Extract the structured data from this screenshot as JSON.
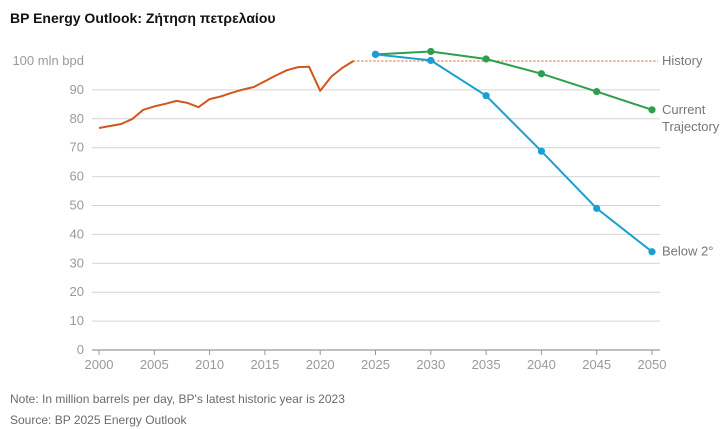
{
  "title": "BP Energy Outlook: Ζήτηση πετρελαίου",
  "note": "Note: In million barrels per day, BP's latest historic year is 2023",
  "source": "Source: BP 2025 Energy Outlook",
  "colors": {
    "history": "#d2561e",
    "current": "#2e9e4f",
    "below2": "#1a9fd3",
    "reference": "#d2561e",
    "grid": "#d4d4d4",
    "axis": "#9a9a9a"
  },
  "chart_data": {
    "type": "line",
    "title": "BP Energy Outlook: Ζήτηση πετρελαίου",
    "xlim": [
      2000,
      2050
    ],
    "ylim": [
      0,
      100
    ],
    "x_ticks": [
      2000,
      2005,
      2010,
      2015,
      2020,
      2025,
      2030,
      2035,
      2040,
      2045,
      2050
    ],
    "y_ticks": [
      0,
      10,
      20,
      30,
      40,
      50,
      60,
      70,
      80,
      90,
      100
    ],
    "y_tick_labels": [
      "0",
      "10",
      "20",
      "30",
      "40",
      "50",
      "60",
      "70",
      "80",
      "90",
      "100 mln bpd"
    ],
    "grid": "horizontal",
    "reference_line": {
      "y": 100,
      "style": "dotted",
      "label": "History"
    },
    "series": [
      {
        "name": "History",
        "markers": false,
        "x": [
          2000,
          2001,
          2002,
          2003,
          2004,
          2005,
          2006,
          2007,
          2008,
          2009,
          2010,
          2011,
          2012,
          2013,
          2014,
          2015,
          2016,
          2017,
          2018,
          2019,
          2020,
          2021,
          2022,
          2023
        ],
        "y": [
          76.8,
          77.5,
          78.2,
          79.9,
          83.1,
          84.3,
          85.2,
          86.2,
          85.5,
          84.0,
          86.8,
          87.7,
          89.0,
          90.1,
          91.0,
          93.0,
          95.0,
          96.8,
          97.9,
          98.0,
          89.7,
          94.6,
          97.6,
          100.0
        ]
      },
      {
        "name": "Current Trajectory",
        "label_lines": [
          "Current",
          "Trajectory"
        ],
        "markers": true,
        "x": [
          2025,
          2030,
          2035,
          2040,
          2045,
          2050
        ],
        "y": [
          102.3,
          103.3,
          100.7,
          95.6,
          89.4,
          83.1
        ]
      },
      {
        "name": "Below 2°",
        "markers": true,
        "x": [
          2025,
          2030,
          2035,
          2040,
          2045,
          2050
        ],
        "y": [
          102.3,
          100.2,
          88.0,
          68.8,
          49.0,
          34.0
        ]
      }
    ]
  }
}
